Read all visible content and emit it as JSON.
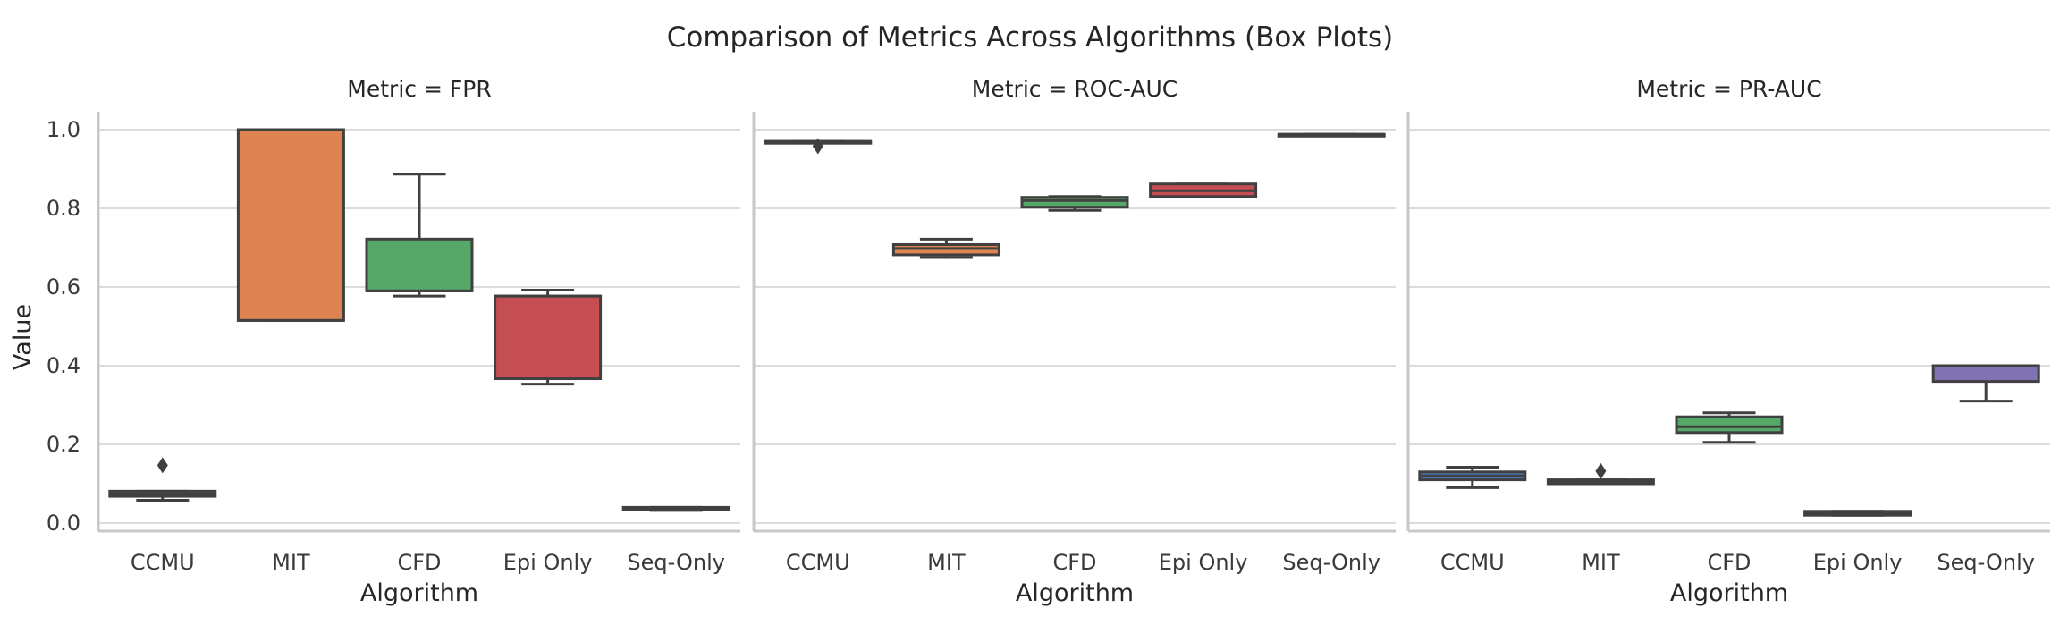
{
  "figure": {
    "title": "Comparison of Metrics Across Algorithms (Box Plots)",
    "ylabel": "Value"
  },
  "chart_data": {
    "type": "box",
    "categories": [
      "CCMU",
      "MIT",
      "CFD",
      "Epi Only",
      "Seq-Only"
    ],
    "colors": [
      "#4c72b0",
      "#dd8452",
      "#55a868",
      "#c44e52",
      "#8172b3"
    ],
    "ylim": [
      -0.03,
      1.05
    ],
    "yticks": [
      0.0,
      0.2,
      0.4,
      0.6,
      0.8,
      1.0
    ],
    "ytick_labels": [
      "0.0",
      "0.2",
      "0.4",
      "0.6",
      "0.8",
      "1.0"
    ],
    "xlabel": "Algorithm",
    "grid": true,
    "panels": [
      {
        "title": "Metric = FPR",
        "boxes": [
          {
            "min": 0.058,
            "q1": 0.068,
            "median": 0.074,
            "q3": 0.081,
            "max": 0.081,
            "fliers": [
              0.147
            ]
          },
          {
            "min": 0.515,
            "q1": 0.515,
            "median": 0.515,
            "q3": 1.0,
            "max": 1.0,
            "fliers": []
          },
          {
            "min": 0.577,
            "q1": 0.59,
            "median": 0.59,
            "q3": 0.722,
            "max": 0.887,
            "fliers": []
          },
          {
            "min": 0.353,
            "q1": 0.367,
            "median": 0.577,
            "q3": 0.577,
            "max": 0.592,
            "fliers": []
          },
          {
            "min": 0.032,
            "q1": 0.035,
            "median": 0.037,
            "q3": 0.04,
            "max": 0.04,
            "fliers": []
          }
        ]
      },
      {
        "title": "Metric = ROC-AUC",
        "boxes": [
          {
            "min": 0.97,
            "q1": 0.97,
            "median": 0.97,
            "q3": 0.97,
            "max": 0.97,
            "fliers": [
              0.958
            ]
          },
          {
            "min": 0.675,
            "q1": 0.682,
            "median": 0.698,
            "q3": 0.708,
            "max": 0.722,
            "fliers": []
          },
          {
            "min": 0.795,
            "q1": 0.803,
            "median": 0.82,
            "q3": 0.828,
            "max": 0.83,
            "fliers": []
          },
          {
            "min": 0.83,
            "q1": 0.83,
            "median": 0.845,
            "q3": 0.862,
            "max": 0.862,
            "fliers": []
          },
          {
            "min": 0.988,
            "q1": 0.988,
            "median": 0.988,
            "q3": 0.988,
            "max": 0.988,
            "fliers": []
          }
        ]
      },
      {
        "title": "Metric = PR-AUC",
        "boxes": [
          {
            "min": 0.09,
            "q1": 0.11,
            "median": 0.12,
            "q3": 0.13,
            "max": 0.142,
            "fliers": []
          },
          {
            "min": 0.1,
            "q1": 0.1,
            "median": 0.105,
            "q3": 0.11,
            "max": 0.11,
            "fliers": [
              0.132
            ]
          },
          {
            "min": 0.205,
            "q1": 0.23,
            "median": 0.245,
            "q3": 0.27,
            "max": 0.28,
            "fliers": []
          },
          {
            "min": 0.02,
            "q1": 0.02,
            "median": 0.025,
            "q3": 0.03,
            "max": 0.03,
            "fliers": []
          },
          {
            "min": 0.31,
            "q1": 0.36,
            "median": 0.4,
            "q3": 0.4,
            "max": 0.4,
            "fliers": []
          }
        ]
      }
    ]
  }
}
